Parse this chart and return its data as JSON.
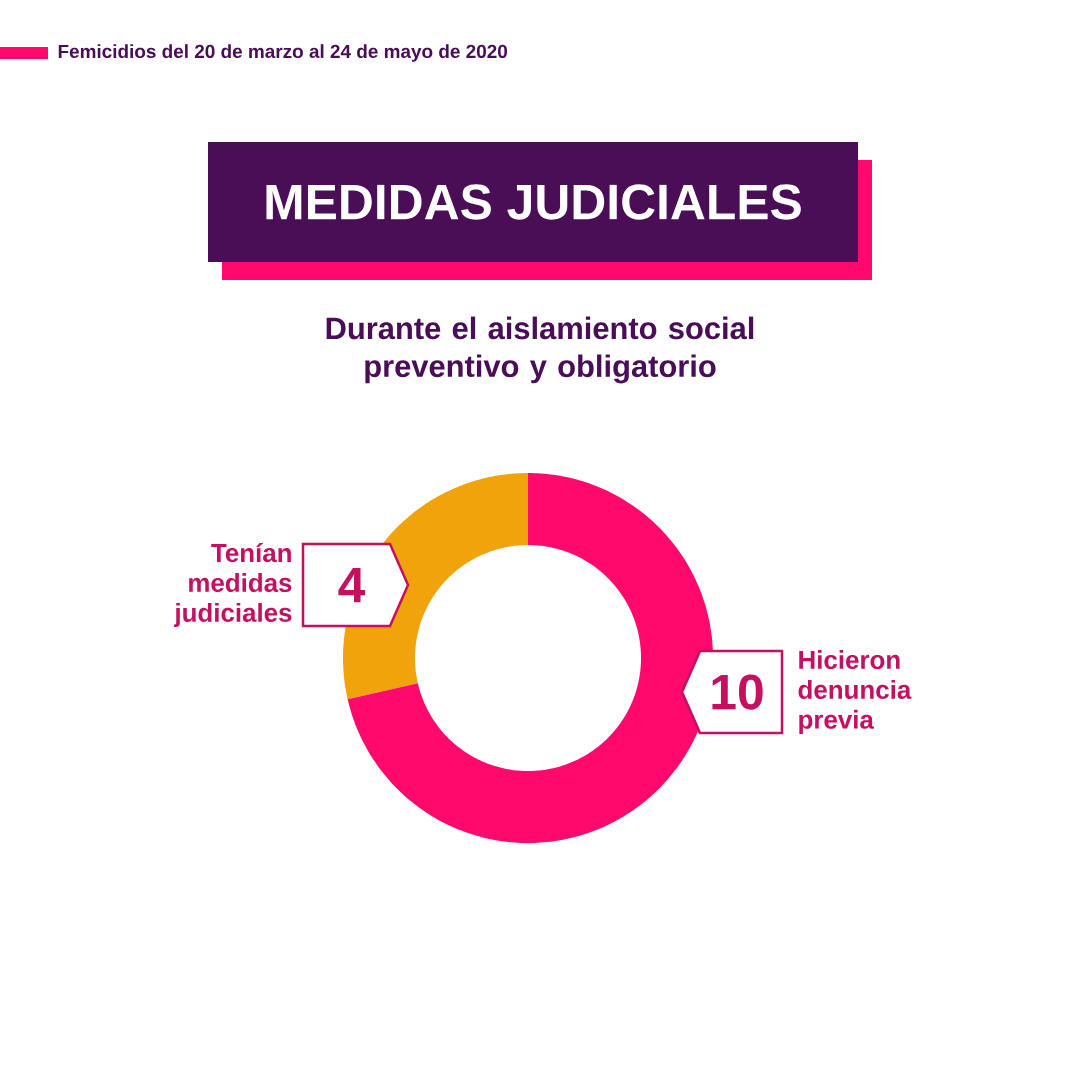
{
  "chart_data": {
    "type": "donut",
    "title": "MEDIDAS JUDICIALES",
    "subtitle": "Durante el aislamiento social preventivo y obligatorio",
    "categories": [
      "Tenían medidas judiciales",
      "Hicieron denuncia previa"
    ],
    "values": [
      4,
      10
    ],
    "colors": [
      "#f0a30a",
      "#ff0a6c"
    ],
    "data_labels": true,
    "annotations": [
      "Femicidios del 20 de marzo al 24 de mayo de 2020"
    ]
  }
}
